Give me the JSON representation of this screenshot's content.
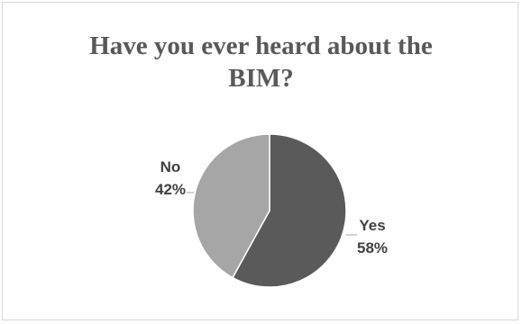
{
  "chart_data": {
    "type": "pie",
    "title": "Have you ever heard about the BIM?",
    "categories": [
      "Yes",
      "No"
    ],
    "values": [
      58,
      42
    ],
    "value_labels": [
      "58%",
      "42%"
    ],
    "colors": [
      "#5a5a5a",
      "#a6a6a6"
    ],
    "legend": "none"
  }
}
